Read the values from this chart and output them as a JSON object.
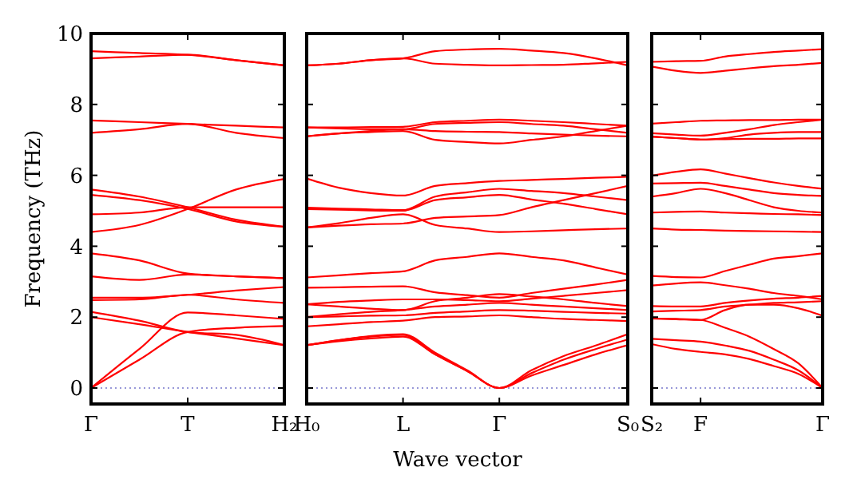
{
  "chart_data": [
    {
      "type": "line",
      "ylabel": "Frequency (THz)",
      "categories": [
        "Γ",
        null,
        "T",
        null,
        "H₂"
      ],
      "ylim": [
        -0.45,
        10
      ],
      "yticks": [
        0,
        2,
        4,
        6,
        8,
        10
      ],
      "ref_lines": [
        {
          "axis": "y",
          "value": 0,
          "color": "#7777cc",
          "line_style": "dotted"
        }
      ],
      "series": [
        {
          "color": "#ff0000",
          "values": [
            9.5,
            9.45,
            9.4,
            9.25,
            9.1
          ]
        },
        {
          "color": "#ff0000",
          "values": [
            9.3,
            9.35,
            9.4,
            9.25,
            9.1
          ]
        },
        {
          "color": "#ff0000",
          "values": [
            7.55,
            7.5,
            7.45,
            7.4,
            7.35
          ]
        },
        {
          "color": "#ff0000",
          "values": [
            7.2,
            7.3,
            7.45,
            7.2,
            7.05
          ]
        },
        {
          "color": "#ff0000",
          "values": [
            5.6,
            5.4,
            5.1,
            4.75,
            4.55
          ]
        },
        {
          "color": "#ff0000",
          "values": [
            5.45,
            5.3,
            5.05,
            4.7,
            4.55
          ]
        },
        {
          "color": "#ff0000",
          "values": [
            4.4,
            4.6,
            5.05,
            5.6,
            5.9
          ]
        },
        {
          "color": "#ff0000",
          "values": [
            4.9,
            4.95,
            5.1,
            5.1,
            5.1
          ]
        },
        {
          "color": "#ff0000",
          "values": [
            3.8,
            3.6,
            3.23,
            3.15,
            3.1
          ]
        },
        {
          "color": "#ff0000",
          "values": [
            3.15,
            3.05,
            3.2,
            3.15,
            3.1
          ]
        },
        {
          "color": "#ff0000",
          "values": [
            2.55,
            2.55,
            2.63,
            2.75,
            2.85
          ]
        },
        {
          "color": "#ff0000",
          "values": [
            2.48,
            2.5,
            2.63,
            2.5,
            2.4
          ]
        },
        {
          "color": "#ff0000",
          "values": [
            2.15,
            1.9,
            1.58,
            1.5,
            1.21
          ]
        },
        {
          "color": "#ff0000",
          "values": [
            2.0,
            1.8,
            1.58,
            1.4,
            1.21
          ]
        },
        {
          "color": "#ff0000",
          "values": [
            0,
            1.1,
            2.13,
            2.05,
            1.95
          ]
        },
        {
          "color": "#ff0000",
          "values": [
            0,
            0.8,
            1.58,
            1.7,
            1.75
          ]
        }
      ]
    },
    {
      "type": "line",
      "xlabel": "Wave vector",
      "categories": [
        "H₀",
        null,
        null,
        "L",
        null,
        null,
        "Γ",
        null,
        null,
        null,
        "S₀"
      ],
      "ylim": [
        -0.45,
        10
      ],
      "yticks": [
        0,
        2,
        4,
        6,
        8,
        10
      ],
      "tick_labels": "x",
      "ref_lines": [
        {
          "axis": "y",
          "value": 0,
          "color": "#7777cc",
          "line_style": "dotted"
        }
      ],
      "series": [
        {
          "color": "#ff0000",
          "values": [
            9.1,
            9.15,
            9.25,
            9.3,
            9.5,
            9.55,
            9.57,
            9.52,
            9.45,
            9.3,
            9.1
          ]
        },
        {
          "color": "#ff0000",
          "values": [
            9.1,
            9.15,
            9.25,
            9.3,
            9.15,
            9.12,
            9.1,
            9.11,
            9.12,
            9.16,
            9.2
          ]
        },
        {
          "color": "#ff0000",
          "values": [
            7.35,
            7.35,
            7.36,
            7.37,
            7.5,
            7.54,
            7.57,
            7.54,
            7.5,
            7.45,
            7.4
          ]
        },
        {
          "color": "#ff0000",
          "values": [
            7.35,
            7.32,
            7.3,
            7.3,
            7.45,
            7.48,
            7.5,
            7.45,
            7.4,
            7.3,
            7.2
          ]
        },
        {
          "color": "#ff0000",
          "values": [
            7.1,
            7.18,
            7.25,
            7.3,
            7.25,
            7.23,
            7.22,
            7.18,
            7.15,
            7.12,
            7.1
          ]
        },
        {
          "color": "#ff0000",
          "values": [
            7.1,
            7.18,
            7.22,
            7.25,
            7.0,
            6.94,
            6.9,
            7.0,
            7.1,
            7.25,
            7.4
          ]
        },
        {
          "color": "#ff0000",
          "values": [
            5.91,
            5.65,
            5.5,
            5.43,
            5.7,
            5.78,
            5.84,
            5.87,
            5.9,
            5.93,
            5.96
          ]
        },
        {
          "color": "#ff0000",
          "values": [
            5.09,
            5.06,
            5.04,
            5.02,
            5.4,
            5.52,
            5.62,
            5.56,
            5.5,
            5.4,
            5.3
          ]
        },
        {
          "color": "#ff0000",
          "values": [
            5.05,
            5.03,
            5.01,
            5.0,
            5.3,
            5.38,
            5.45,
            5.32,
            5.2,
            5.05,
            4.9
          ]
        },
        {
          "color": "#ff0000",
          "values": [
            4.53,
            4.58,
            4.62,
            4.64,
            4.8,
            4.84,
            4.88,
            5.1,
            5.3,
            5.5,
            5.7
          ]
        },
        {
          "color": "#ff0000",
          "values": [
            4.53,
            4.65,
            4.8,
            4.9,
            4.6,
            4.5,
            4.4,
            4.42,
            4.45,
            4.48,
            4.5
          ]
        },
        {
          "color": "#ff0000",
          "values": [
            3.12,
            3.18,
            3.24,
            3.29,
            3.6,
            3.7,
            3.8,
            3.7,
            3.6,
            3.4,
            3.2
          ]
        },
        {
          "color": "#ff0000",
          "values": [
            2.83,
            2.84,
            2.86,
            2.87,
            2.7,
            2.62,
            2.55,
            2.68,
            2.8,
            2.92,
            3.05
          ]
        },
        {
          "color": "#ff0000",
          "values": [
            2.36,
            2.43,
            2.47,
            2.5,
            2.5,
            2.48,
            2.45,
            2.52,
            2.6,
            2.68,
            2.76
          ]
        },
        {
          "color": "#ff0000",
          "values": [
            2.36,
            2.3,
            2.24,
            2.2,
            2.45,
            2.55,
            2.65,
            2.58,
            2.5,
            2.4,
            2.31
          ]
        },
        {
          "color": "#ff0000",
          "values": [
            2.0,
            2.08,
            2.15,
            2.2,
            2.3,
            2.35,
            2.4,
            2.35,
            2.3,
            2.25,
            2.2
          ]
        },
        {
          "color": "#ff0000",
          "values": [
            2.0,
            2.02,
            2.04,
            2.05,
            2.12,
            2.16,
            2.2,
            2.18,
            2.15,
            2.12,
            2.1
          ]
        },
        {
          "color": "#ff0000",
          "values": [
            1.74,
            1.8,
            1.86,
            1.9,
            2.0,
            2.02,
            2.05,
            2.0,
            1.95,
            1.92,
            1.89
          ]
        },
        {
          "color": "#ff0000",
          "values": [
            1.21,
            1.35,
            1.47,
            1.52,
            1.0,
            0.5,
            0,
            0.5,
            0.9,
            1.2,
            1.52
          ]
        },
        {
          "color": "#ff0000",
          "values": [
            1.21,
            1.32,
            1.4,
            1.45,
            0.95,
            0.48,
            0,
            0.42,
            0.8,
            1.1,
            1.37
          ]
        },
        {
          "color": "#ff0000",
          "values": [
            1.21,
            1.35,
            1.45,
            1.5,
            0.95,
            0.48,
            0,
            0.35,
            0.65,
            0.95,
            1.21
          ]
        }
      ]
    },
    {
      "type": "line",
      "categories": [
        "S₂",
        null,
        "F",
        null,
        null,
        null,
        null,
        "Γ"
      ],
      "ylim": [
        -0.45,
        10
      ],
      "yticks": [
        0,
        2,
        4,
        6,
        8,
        10
      ],
      "tick_labels": "x",
      "ref_lines": [
        {
          "axis": "y",
          "value": 0,
          "color": "#7777cc",
          "line_style": "dotted"
        }
      ],
      "series": [
        {
          "color": "#ff0000",
          "values": [
            9.2,
            9.22,
            9.23,
            9.35,
            9.42,
            9.48,
            9.52,
            9.56
          ]
        },
        {
          "color": "#ff0000",
          "values": [
            9.07,
            8.95,
            8.89,
            8.95,
            9.02,
            9.08,
            9.12,
            9.17
          ]
        },
        {
          "color": "#ff0000",
          "values": [
            7.46,
            7.5,
            7.54,
            7.55,
            7.56,
            7.56,
            7.57,
            7.57
          ]
        },
        {
          "color": "#ff0000",
          "values": [
            7.19,
            7.15,
            7.12,
            7.2,
            7.3,
            7.42,
            7.5,
            7.57
          ]
        },
        {
          "color": "#ff0000",
          "values": [
            7.09,
            7.05,
            7.01,
            7.05,
            7.15,
            7.2,
            7.22,
            7.22
          ]
        },
        {
          "color": "#ff0000",
          "values": [
            7.09,
            7.05,
            7.01,
            7.02,
            7.03,
            7.03,
            7.04,
            7.04
          ]
        },
        {
          "color": "#ff0000",
          "values": [
            5.99,
            6.1,
            6.17,
            6.05,
            5.92,
            5.8,
            5.7,
            5.62
          ]
        },
        {
          "color": "#ff0000",
          "values": [
            5.77,
            5.78,
            5.79,
            5.7,
            5.6,
            5.5,
            5.45,
            5.42
          ]
        },
        {
          "color": "#ff0000",
          "values": [
            5.4,
            5.5,
            5.62,
            5.5,
            5.3,
            5.1,
            5.0,
            4.95
          ]
        },
        {
          "color": "#ff0000",
          "values": [
            4.95,
            4.97,
            4.98,
            4.95,
            4.93,
            4.91,
            4.9,
            4.88
          ]
        },
        {
          "color": "#ff0000",
          "values": [
            4.5,
            4.47,
            4.46,
            4.44,
            4.43,
            4.42,
            4.41,
            4.4
          ]
        },
        {
          "color": "#ff0000",
          "values": [
            3.16,
            3.13,
            3.12,
            3.3,
            3.48,
            3.65,
            3.72,
            3.8
          ]
        },
        {
          "color": "#ff0000",
          "values": [
            2.89,
            2.95,
            2.98,
            2.9,
            2.8,
            2.68,
            2.6,
            2.5
          ]
        },
        {
          "color": "#ff0000",
          "values": [
            2.31,
            2.3,
            2.3,
            2.4,
            2.47,
            2.52,
            2.55,
            2.6
          ]
        },
        {
          "color": "#ff0000",
          "values": [
            2.16,
            2.18,
            2.2,
            2.3,
            2.35,
            2.4,
            2.42,
            2.45
          ]
        },
        {
          "color": "#ff0000",
          "values": [
            1.96,
            1.94,
            1.92,
            2.2,
            2.35,
            2.35,
            2.25,
            2.04
          ]
        },
        {
          "color": "#ff0000",
          "values": [
            1.96,
            1.95,
            1.92,
            1.7,
            1.45,
            1.1,
            0.7,
            0
          ]
        },
        {
          "color": "#ff0000",
          "values": [
            1.39,
            1.35,
            1.31,
            1.2,
            1.05,
            0.8,
            0.5,
            0
          ]
        },
        {
          "color": "#ff0000",
          "values": [
            1.24,
            1.1,
            1.02,
            0.95,
            0.82,
            0.62,
            0.4,
            0
          ]
        }
      ]
    }
  ]
}
